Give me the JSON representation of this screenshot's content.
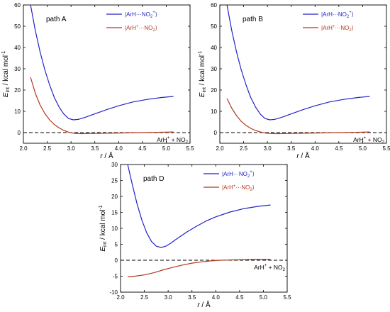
{
  "colors": {
    "blue": "#2323c8",
    "red": "#b2381e",
    "zero_line": "#000000"
  },
  "legend": {
    "blue_label": "|ArH···NO₂⁺⟩",
    "red_label": "|ArH⁺···NO₂⟩"
  },
  "chart_data": [
    {
      "type": "line",
      "panel_label": "path A",
      "ylabel": "Eint / kcal mol⁻¹",
      "xlabel": "r / Å",
      "xlim": [
        2.0,
        5.5
      ],
      "ylim": [
        -5,
        60
      ],
      "xticks": [
        "2.0",
        "2.5",
        "3.0",
        "3.5",
        "4.0",
        "4.5",
        "5.0",
        "5.5"
      ],
      "yticks": [
        "0",
        "10",
        "20",
        "30",
        "40",
        "50",
        "60"
      ],
      "annotation": "ArH⁺ + NO₂",
      "legend_position": "top-right",
      "series": [
        {
          "name": "|ArH···NO₂⁺⟩",
          "color": "blue",
          "x": [
            2.15,
            2.25,
            2.35,
            2.45,
            2.55,
            2.65,
            2.75,
            2.85,
            2.95,
            3.05,
            3.15,
            3.3,
            3.5,
            3.75,
            4.0,
            4.3,
            4.6,
            4.9,
            5.15
          ],
          "y": [
            60,
            48,
            38,
            29.5,
            22.5,
            16.5,
            12,
            8.7,
            6.6,
            6.0,
            6.2,
            7.2,
            8.8,
            10.8,
            12.6,
            14.4,
            15.6,
            16.5,
            17
          ]
        },
        {
          "name": "|ArH⁺···NO₂⟩",
          "color": "red",
          "x": [
            2.15,
            2.25,
            2.35,
            2.45,
            2.55,
            2.65,
            2.75,
            2.85,
            2.95,
            3.05,
            3.2,
            3.5,
            4.0,
            4.5,
            5.0,
            5.15
          ],
          "y": [
            26,
            18.5,
            13,
            9,
            6,
            3.8,
            2.2,
            1.0,
            0.2,
            -0.3,
            -0.5,
            -0.4,
            -0.2,
            0,
            0.2,
            0.3
          ]
        }
      ]
    },
    {
      "type": "line",
      "panel_label": "path B",
      "ylabel": "Eint / kcal mol⁻¹",
      "xlabel": "r / Å",
      "xlim": [
        2.0,
        5.5
      ],
      "ylim": [
        -5,
        60
      ],
      "xticks": [
        "2.0",
        "2.5",
        "3.0",
        "3.5",
        "4.0",
        "4.5",
        "5.0",
        "5.5"
      ],
      "yticks": [
        "0",
        "10",
        "20",
        "30",
        "40",
        "50",
        "60"
      ],
      "annotation": "ArH⁺ + NO₂",
      "legend_position": "top-right",
      "series": [
        {
          "name": "|ArH···NO₂⁺⟩",
          "color": "blue",
          "x": [
            2.15,
            2.25,
            2.35,
            2.45,
            2.55,
            2.65,
            2.75,
            2.85,
            2.95,
            3.05,
            3.15,
            3.3,
            3.5,
            3.75,
            4.0,
            4.3,
            4.6,
            4.9,
            5.15
          ],
          "y": [
            60,
            48,
            38,
            29.5,
            22.5,
            16.5,
            12,
            8.7,
            6.6,
            6.0,
            6.2,
            7.2,
            8.8,
            10.8,
            12.6,
            14.4,
            15.6,
            16.5,
            17
          ]
        },
        {
          "name": "|ArH⁺···NO₂⟩",
          "color": "red",
          "x": [
            2.15,
            2.25,
            2.35,
            2.45,
            2.55,
            2.65,
            2.75,
            2.85,
            2.95,
            3.05,
            3.2,
            3.5,
            4.0,
            4.5,
            5.0,
            5.15
          ],
          "y": [
            16,
            11.5,
            8,
            5.3,
            3.4,
            2,
            1,
            0.3,
            -0.2,
            -0.4,
            -0.5,
            -0.4,
            -0.2,
            0,
            0.2,
            0.3
          ]
        }
      ]
    },
    {
      "type": "line",
      "panel_label": "path D",
      "ylabel": "Eint / kcal mol⁻¹",
      "xlabel": "r / Å",
      "xlim": [
        2.0,
        5.5
      ],
      "ylim": [
        -10,
        30
      ],
      "xticks": [
        "2.0",
        "2.5",
        "3.0",
        "3.5",
        "4.0",
        "4.5",
        "5.0",
        "5.5"
      ],
      "yticks": [
        "-10",
        "-5",
        "0",
        "5",
        "10",
        "15",
        "20",
        "25",
        "30"
      ],
      "annotation": "ArH⁺ + NO₂",
      "legend_position": "top-right",
      "series": [
        {
          "name": "|ArH···NO₂⁺⟩",
          "color": "blue",
          "x": [
            2.15,
            2.25,
            2.35,
            2.45,
            2.55,
            2.65,
            2.75,
            2.85,
            2.95,
            3.05,
            3.2,
            3.4,
            3.6,
            3.8,
            4.0,
            4.3,
            4.6,
            4.9,
            5.15
          ],
          "y": [
            30,
            23.5,
            17.5,
            12.5,
            8.6,
            5.9,
            4.4,
            4.0,
            4.4,
            5.3,
            6.9,
            8.9,
            10.7,
            12.3,
            13.6,
            15.1,
            16.2,
            16.9,
            17.3
          ]
        },
        {
          "name": "|ArH⁺···NO₂⟩",
          "color": "red",
          "x": [
            2.15,
            2.3,
            2.5,
            2.7,
            2.9,
            3.1,
            3.3,
            3.5,
            3.7,
            3.9,
            4.1,
            4.3,
            4.6,
            4.9,
            5.15
          ],
          "y": [
            -5.2,
            -5.0,
            -4.6,
            -3.9,
            -3.0,
            -2.2,
            -1.5,
            -0.9,
            -0.5,
            -0.2,
            0,
            0.1,
            0.2,
            0.3,
            0.3
          ]
        }
      ]
    }
  ]
}
